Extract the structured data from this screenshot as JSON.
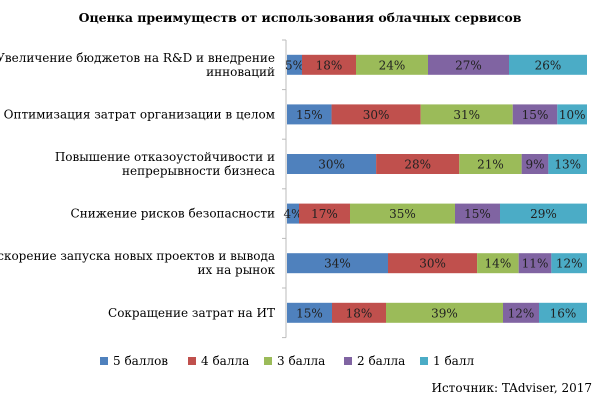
{
  "chart_data": {
    "type": "bar",
    "orientation": "horizontal",
    "stacked": true,
    "percent": true,
    "title": "Оценка преимуществ от использования облачных сервисов",
    "categories": [
      [
        "Увеличение бюджетов на R&D и внедрение",
        "инноваций"
      ],
      [
        "Оптимизация затрат организации в целом"
      ],
      [
        "Повышение отказоустойчивости и",
        "непрерывности бизнеса"
      ],
      [
        "Снижение рисков безопасности"
      ],
      [
        "Ускорение запуска новых проектов и вывода",
        "их на рынок"
      ],
      [
        "Сокращение затрат на ИТ"
      ]
    ],
    "series": [
      {
        "name": "5 баллов",
        "color": "#4f81bd",
        "values": [
          5,
          15,
          30,
          4,
          34,
          15
        ]
      },
      {
        "name": "4 балла",
        "color": "#c0504d",
        "values": [
          18,
          30,
          28,
          17,
          30,
          18
        ]
      },
      {
        "name": "3 балла",
        "color": "#9bbb59",
        "values": [
          24,
          31,
          21,
          35,
          14,
          39
        ]
      },
      {
        "name": "2 балла",
        "color": "#8064a2",
        "values": [
          27,
          15,
          9,
          15,
          11,
          12
        ]
      },
      {
        "name": "1 балл",
        "color": "#4bacc6",
        "values": [
          26,
          10,
          13,
          29,
          12,
          16
        ]
      }
    ],
    "value_suffix": "%",
    "legend": "bottom",
    "grid": false
  },
  "source": "Источник: TAdviser, 2017"
}
